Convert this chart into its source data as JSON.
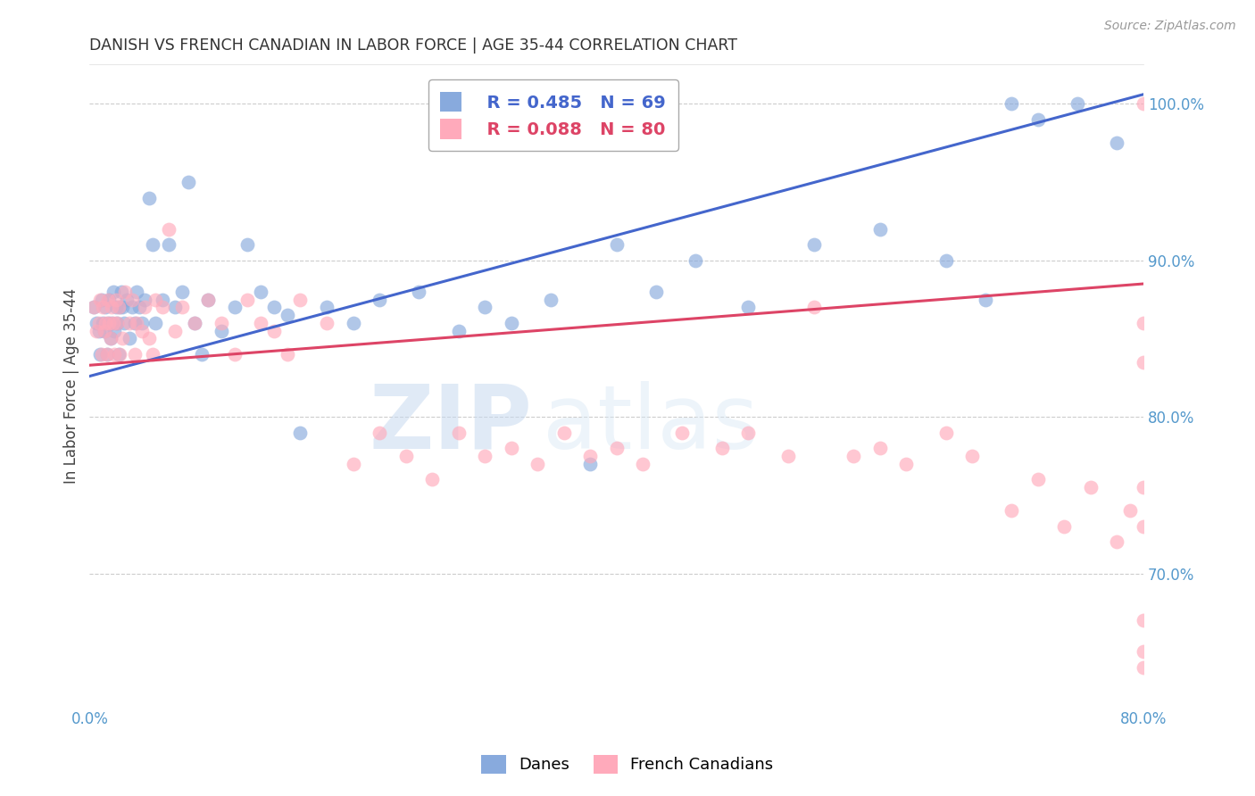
{
  "title": "DANISH VS FRENCH CANADIAN IN LABOR FORCE | AGE 35-44 CORRELATION CHART",
  "source": "Source: ZipAtlas.com",
  "ylabel": "In Labor Force | Age 35-44",
  "xlim": [
    0.0,
    0.8
  ],
  "ylim": [
    0.615,
    1.025
  ],
  "right_yticks": [
    0.7,
    0.8,
    0.9,
    1.0
  ],
  "right_yticklabels": [
    "70.0%",
    "80.0%",
    "90.0%",
    "100.0%"
  ],
  "blue_color": "#88aadd",
  "pink_color": "#ffaabb",
  "blue_line_color": "#4466cc",
  "pink_line_color": "#dd4466",
  "legend_blue_R": "R = 0.485",
  "legend_blue_N": "N = 69",
  "legend_pink_R": "R = 0.088",
  "legend_pink_N": "N = 80",
  "title_color": "#333333",
  "axis_label_color": "#444444",
  "tick_color": "#5599cc",
  "grid_color": "#cccccc",
  "watermark_zip": "ZIP",
  "watermark_atlas": "atlas",
  "background_color": "#ffffff",
  "danes_x": [
    0.003,
    0.005,
    0.007,
    0.008,
    0.009,
    0.01,
    0.011,
    0.012,
    0.013,
    0.014,
    0.015,
    0.016,
    0.017,
    0.018,
    0.019,
    0.02,
    0.021,
    0.022,
    0.023,
    0.024,
    0.025,
    0.026,
    0.028,
    0.03,
    0.032,
    0.034,
    0.036,
    0.038,
    0.04,
    0.042,
    0.045,
    0.048,
    0.05,
    0.055,
    0.06,
    0.065,
    0.07,
    0.075,
    0.08,
    0.085,
    0.09,
    0.1,
    0.11,
    0.12,
    0.13,
    0.14,
    0.15,
    0.16,
    0.18,
    0.2,
    0.22,
    0.25,
    0.28,
    0.3,
    0.32,
    0.35,
    0.38,
    0.4,
    0.43,
    0.46,
    0.5,
    0.55,
    0.6,
    0.65,
    0.68,
    0.7,
    0.72,
    0.75,
    0.78
  ],
  "danes_y": [
    0.87,
    0.86,
    0.855,
    0.84,
    0.875,
    0.86,
    0.855,
    0.87,
    0.84,
    0.86,
    0.875,
    0.85,
    0.86,
    0.88,
    0.855,
    0.87,
    0.86,
    0.84,
    0.87,
    0.88,
    0.87,
    0.86,
    0.875,
    0.85,
    0.87,
    0.86,
    0.88,
    0.87,
    0.86,
    0.875,
    0.94,
    0.91,
    0.86,
    0.875,
    0.91,
    0.87,
    0.88,
    0.95,
    0.86,
    0.84,
    0.875,
    0.855,
    0.87,
    0.91,
    0.88,
    0.87,
    0.865,
    0.79,
    0.87,
    0.86,
    0.875,
    0.88,
    0.855,
    0.87,
    0.86,
    0.875,
    0.77,
    0.91,
    0.88,
    0.9,
    0.87,
    0.91,
    0.92,
    0.9,
    0.875,
    1.0,
    0.99,
    1.0,
    0.975
  ],
  "french_x": [
    0.003,
    0.005,
    0.007,
    0.008,
    0.009,
    0.01,
    0.011,
    0.012,
    0.013,
    0.014,
    0.015,
    0.016,
    0.017,
    0.018,
    0.019,
    0.02,
    0.021,
    0.022,
    0.023,
    0.025,
    0.027,
    0.03,
    0.032,
    0.034,
    0.036,
    0.04,
    0.042,
    0.045,
    0.048,
    0.05,
    0.055,
    0.06,
    0.065,
    0.07,
    0.08,
    0.09,
    0.1,
    0.11,
    0.12,
    0.13,
    0.14,
    0.15,
    0.16,
    0.18,
    0.2,
    0.22,
    0.24,
    0.26,
    0.28,
    0.3,
    0.32,
    0.34,
    0.36,
    0.38,
    0.4,
    0.42,
    0.45,
    0.48,
    0.5,
    0.53,
    0.55,
    0.58,
    0.6,
    0.62,
    0.65,
    0.67,
    0.7,
    0.72,
    0.74,
    0.76,
    0.78,
    0.79,
    0.8,
    0.8,
    0.8,
    0.8,
    0.8,
    0.8,
    0.8,
    0.8
  ],
  "french_y": [
    0.87,
    0.855,
    0.86,
    0.875,
    0.84,
    0.87,
    0.855,
    0.86,
    0.84,
    0.875,
    0.86,
    0.85,
    0.87,
    0.86,
    0.84,
    0.875,
    0.86,
    0.87,
    0.84,
    0.85,
    0.88,
    0.86,
    0.875,
    0.84,
    0.86,
    0.855,
    0.87,
    0.85,
    0.84,
    0.875,
    0.87,
    0.92,
    0.855,
    0.87,
    0.86,
    0.875,
    0.86,
    0.84,
    0.875,
    0.86,
    0.855,
    0.84,
    0.875,
    0.86,
    0.77,
    0.79,
    0.775,
    0.76,
    0.79,
    0.775,
    0.78,
    0.77,
    0.79,
    0.775,
    0.78,
    0.77,
    0.79,
    0.78,
    0.79,
    0.775,
    0.87,
    0.775,
    0.78,
    0.77,
    0.79,
    0.775,
    0.74,
    0.76,
    0.73,
    0.755,
    0.72,
    0.74,
    0.755,
    0.73,
    0.86,
    0.835,
    0.64,
    0.67,
    0.65,
    1.0
  ]
}
